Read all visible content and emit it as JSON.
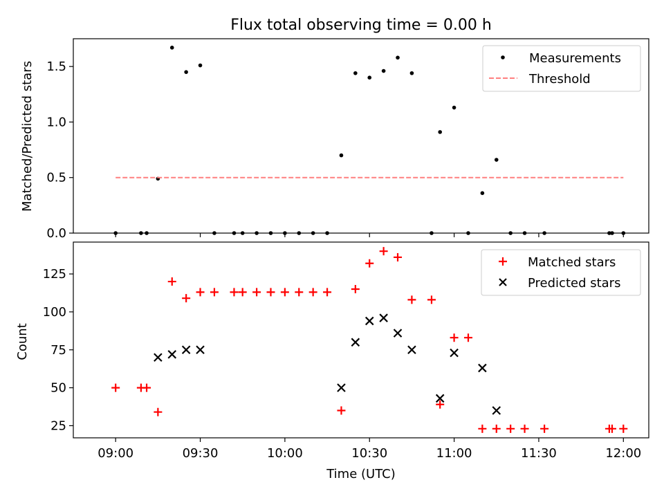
{
  "chart_data": [
    {
      "type": "scatter",
      "title": "Flux total observing time = 0.00 h",
      "xlabel": "",
      "ylabel": "Matched/Predicted stars",
      "xlim": [
        "08:45",
        "12:09"
      ],
      "ylim": [
        0,
        1.75
      ],
      "yticks": [
        0.0,
        0.5,
        1.0,
        1.5
      ],
      "ytick_labels": [
        "0.0",
        "0.5",
        "1.0",
        "1.5"
      ],
      "xticks": [
        "09:00",
        "09:30",
        "10:00",
        "10:30",
        "11:00",
        "11:30",
        "12:00"
      ],
      "legend_position": "top-right",
      "series": [
        {
          "name": "Measurements",
          "style": "dot",
          "color": "#000000",
          "points": [
            [
              "09:00",
              0
            ],
            [
              "09:09",
              0
            ],
            [
              "09:11",
              0
            ],
            [
              "09:15",
              0.49
            ],
            [
              "09:20",
              1.67
            ],
            [
              "09:25",
              1.45
            ],
            [
              "09:30",
              1.51
            ],
            [
              "09:35",
              0
            ],
            [
              "09:42",
              0
            ],
            [
              "09:45",
              0
            ],
            [
              "09:50",
              0
            ],
            [
              "09:55",
              0
            ],
            [
              "10:00",
              0
            ],
            [
              "10:05",
              0
            ],
            [
              "10:10",
              0
            ],
            [
              "10:15",
              0
            ],
            [
              "10:20",
              0.7
            ],
            [
              "10:25",
              1.44
            ],
            [
              "10:30",
              1.4
            ],
            [
              "10:35",
              1.46
            ],
            [
              "10:40",
              1.58
            ],
            [
              "10:45",
              1.44
            ],
            [
              "10:52",
              0
            ],
            [
              "10:55",
              0.91
            ],
            [
              "11:00",
              1.13
            ],
            [
              "11:05",
              0
            ],
            [
              "11:10",
              0.36
            ],
            [
              "11:15",
              0.66
            ],
            [
              "11:20",
              0
            ],
            [
              "11:25",
              0
            ],
            [
              "11:32",
              0
            ],
            [
              "11:55",
              0
            ],
            [
              "11:56",
              0
            ],
            [
              "12:00",
              0
            ]
          ]
        },
        {
          "name": "Threshold",
          "style": "dashed-line",
          "color": "#ff7f7f",
          "points": [
            [
              "09:00",
              0.5
            ],
            [
              "12:00",
              0.5
            ]
          ]
        }
      ]
    },
    {
      "type": "scatter",
      "title": "",
      "xlabel": "Time (UTC)",
      "ylabel": "Count",
      "xlim": [
        "08:45",
        "12:09"
      ],
      "ylim": [
        17,
        146
      ],
      "yticks": [
        25,
        50,
        75,
        100,
        125
      ],
      "ytick_labels": [
        "25",
        "50",
        "75",
        "100",
        "125"
      ],
      "xticks": [
        "09:00",
        "09:30",
        "10:00",
        "10:30",
        "11:00",
        "11:30",
        "12:00"
      ],
      "xtick_labels": [
        "09:00",
        "09:30",
        "10:00",
        "10:30",
        "11:00",
        "11:30",
        "12:00"
      ],
      "legend_position": "top-right",
      "series": [
        {
          "name": "Matched stars",
          "style": "plus",
          "color": "#ff0000",
          "points": [
            [
              "09:00",
              50
            ],
            [
              "09:09",
              50
            ],
            [
              "09:11",
              50
            ],
            [
              "09:15",
              34
            ],
            [
              "09:20",
              120
            ],
            [
              "09:25",
              109
            ],
            [
              "09:30",
              113
            ],
            [
              "09:35",
              113
            ],
            [
              "09:42",
              113
            ],
            [
              "09:45",
              113
            ],
            [
              "09:50",
              113
            ],
            [
              "09:55",
              113
            ],
            [
              "10:00",
              113
            ],
            [
              "10:05",
              113
            ],
            [
              "10:10",
              113
            ],
            [
              "10:15",
              113
            ],
            [
              "10:20",
              35
            ],
            [
              "10:25",
              115
            ],
            [
              "10:30",
              132
            ],
            [
              "10:35",
              140
            ],
            [
              "10:40",
              136
            ],
            [
              "10:45",
              108
            ],
            [
              "10:52",
              108
            ],
            [
              "10:55",
              39
            ],
            [
              "11:00",
              83
            ],
            [
              "11:05",
              83
            ],
            [
              "11:10",
              23
            ],
            [
              "11:15",
              23
            ],
            [
              "11:20",
              23
            ],
            [
              "11:25",
              23
            ],
            [
              "11:32",
              23
            ],
            [
              "11:55",
              23
            ],
            [
              "11:56",
              23
            ],
            [
              "12:00",
              23
            ]
          ]
        },
        {
          "name": "Predicted stars",
          "style": "x",
          "color": "#000000",
          "points": [
            [
              "09:15",
              70
            ],
            [
              "09:20",
              72
            ],
            [
              "09:25",
              75
            ],
            [
              "09:30",
              75
            ],
            [
              "10:20",
              50
            ],
            [
              "10:25",
              80
            ],
            [
              "10:30",
              94
            ],
            [
              "10:35",
              96
            ],
            [
              "10:40",
              86
            ],
            [
              "10:45",
              75
            ],
            [
              "10:55",
              43
            ],
            [
              "11:00",
              73
            ],
            [
              "11:10",
              63
            ],
            [
              "11:15",
              35
            ]
          ]
        }
      ]
    }
  ]
}
